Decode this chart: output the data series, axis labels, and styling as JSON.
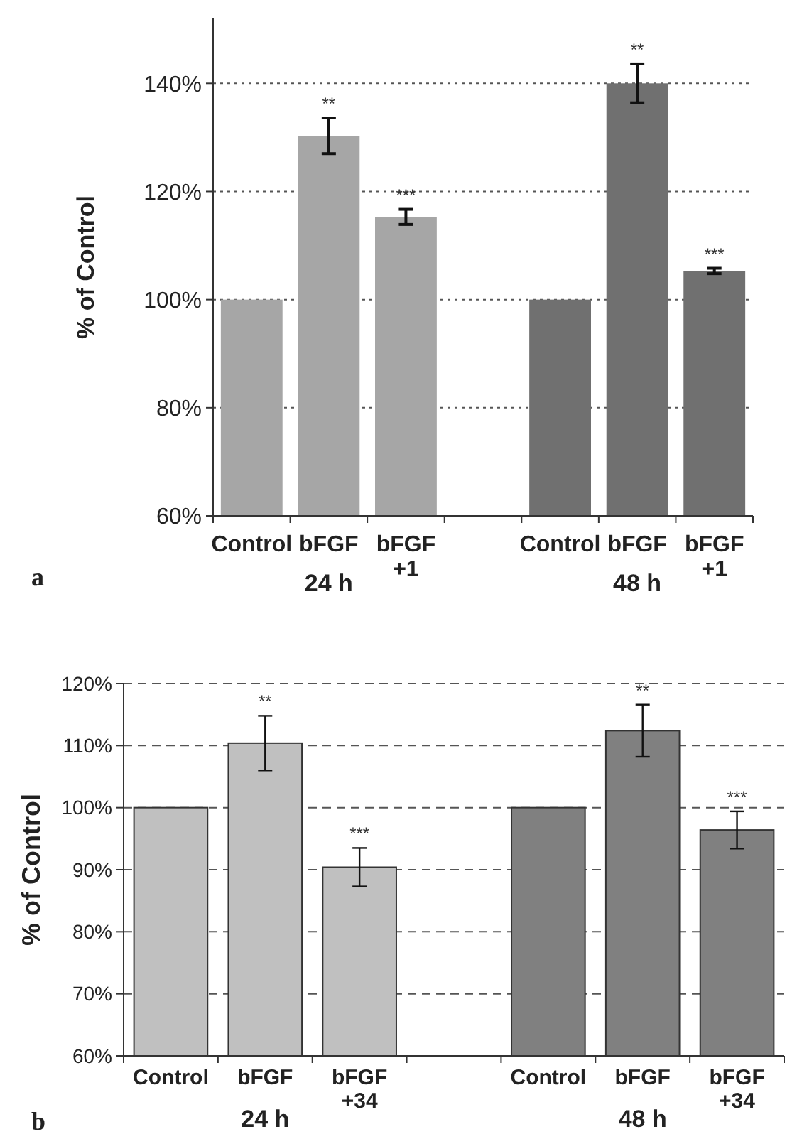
{
  "chart_data": [
    {
      "type": "bar",
      "ylabel": "% of Control",
      "categories": [
        "Control",
        "bFGF",
        "bFGF\n+1",
        null,
        "Control",
        "bFGF",
        "bFGF\n+1"
      ],
      "values": [
        100,
        130.3,
        115.3,
        null,
        100,
        140,
        105.3
      ],
      "colors": [
        "#a6a6a6",
        "#a6a6a6",
        "#a6a6a6",
        null,
        "#707070",
        "#707070",
        "#707070"
      ],
      "errors": [
        null,
        3.3,
        1.4,
        null,
        null,
        3.6,
        0.5
      ],
      "value_labels": [
        null,
        "**",
        "***",
        null,
        null,
        "**",
        "***"
      ],
      "ylim": [
        60,
        152
      ],
      "yticks": [
        {
          "value": 60,
          "label": "60%"
        },
        {
          "value": 80,
          "label": "80%"
        },
        {
          "value": 100,
          "label": "100%"
        },
        {
          "value": 120,
          "label": "120%"
        },
        {
          "value": 140,
          "label": "140%"
        }
      ],
      "grid": "y",
      "annotations": [
        "24 h",
        "48 h",
        "a"
      ]
    },
    {
      "type": "bar",
      "ylabel": "% of Control",
      "categories": [
        "Control",
        "bFGF",
        "bFGF\n+34",
        null,
        "Control",
        "bFGF",
        "bFGF\n+34"
      ],
      "values": [
        100,
        110.4,
        90.4,
        null,
        100,
        112.4,
        96.4
      ],
      "colors": [
        "#c0c0c0",
        "#c0c0c0",
        "#c0c0c0",
        null,
        "#808080",
        "#808080",
        "#808080"
      ],
      "errors": [
        null,
        4.4,
        3.1,
        null,
        null,
        4.2,
        3
      ],
      "value_labels": [
        null,
        "**",
        "***",
        null,
        null,
        "**",
        "***"
      ],
      "ylim": [
        60,
        120
      ],
      "yticks": [
        {
          "value": 60,
          "label": "60%"
        },
        {
          "value": 70,
          "label": "70%"
        },
        {
          "value": 80,
          "label": "80%"
        },
        {
          "value": 90,
          "label": "90%"
        },
        {
          "value": 100,
          "label": "100%"
        },
        {
          "value": 110,
          "label": "110%"
        },
        {
          "value": 120,
          "label": "120%"
        }
      ],
      "grid": "y",
      "annotations": [
        "24 h",
        "48 h",
        "b"
      ]
    }
  ]
}
